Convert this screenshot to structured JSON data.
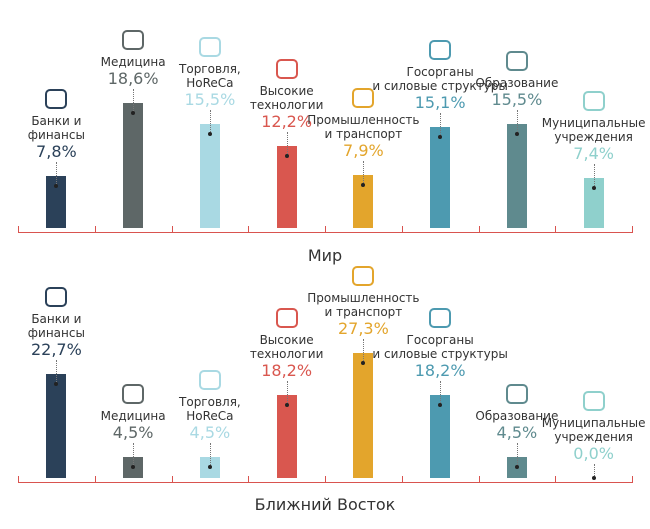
{
  "chart_data": [
    {
      "type": "bar",
      "title": "Мир",
      "categories": [
        "Банки и\nфинансы",
        "Медицина",
        "Торговля,\nHoReCa",
        "Высокие\nтехнологии",
        "Промышленность\nи транспорт",
        "Госорганы\nи силовые структуры",
        "Образование",
        "Муниципальные\nучреждения"
      ],
      "values": [
        7.8,
        18.6,
        15.5,
        12.2,
        7.9,
        15.1,
        15.5,
        7.4
      ],
      "value_labels": [
        "7,8%",
        "18,6%",
        "15,5%",
        "12,2%",
        "7,9%",
        "15,1%",
        "15,5%",
        "7,4%"
      ],
      "colors": [
        "#2b4159",
        "#5e6767",
        "#a9d9e3",
        "#d9574f",
        "#e3a52c",
        "#4d9ab0",
        "#5f8a8e",
        "#8fd0cc"
      ]
    },
    {
      "type": "bar",
      "title": "Ближний Восток",
      "categories": [
        "Банки и\nфинансы",
        "Медицина",
        "Торговля,\nHoReCa",
        "Высокие\nтехнологии",
        "Промышленность\nи транспорт",
        "Госорганы\nи силовые структуры",
        "Образование",
        "Муниципальные\nучреждения"
      ],
      "values": [
        22.7,
        4.5,
        4.5,
        18.2,
        27.3,
        18.2,
        4.5,
        0.0
      ],
      "value_labels": [
        "22,7%",
        "4,5%",
        "4,5%",
        "18,2%",
        "27,3%",
        "18,2%",
        "4,5%",
        "0,0%"
      ],
      "colors": [
        "#2b4159",
        "#5e6767",
        "#a9d9e3",
        "#d9574f",
        "#e3a52c",
        "#4d9ab0",
        "#5f8a8e",
        "#8fd0cc"
      ]
    }
  ]
}
